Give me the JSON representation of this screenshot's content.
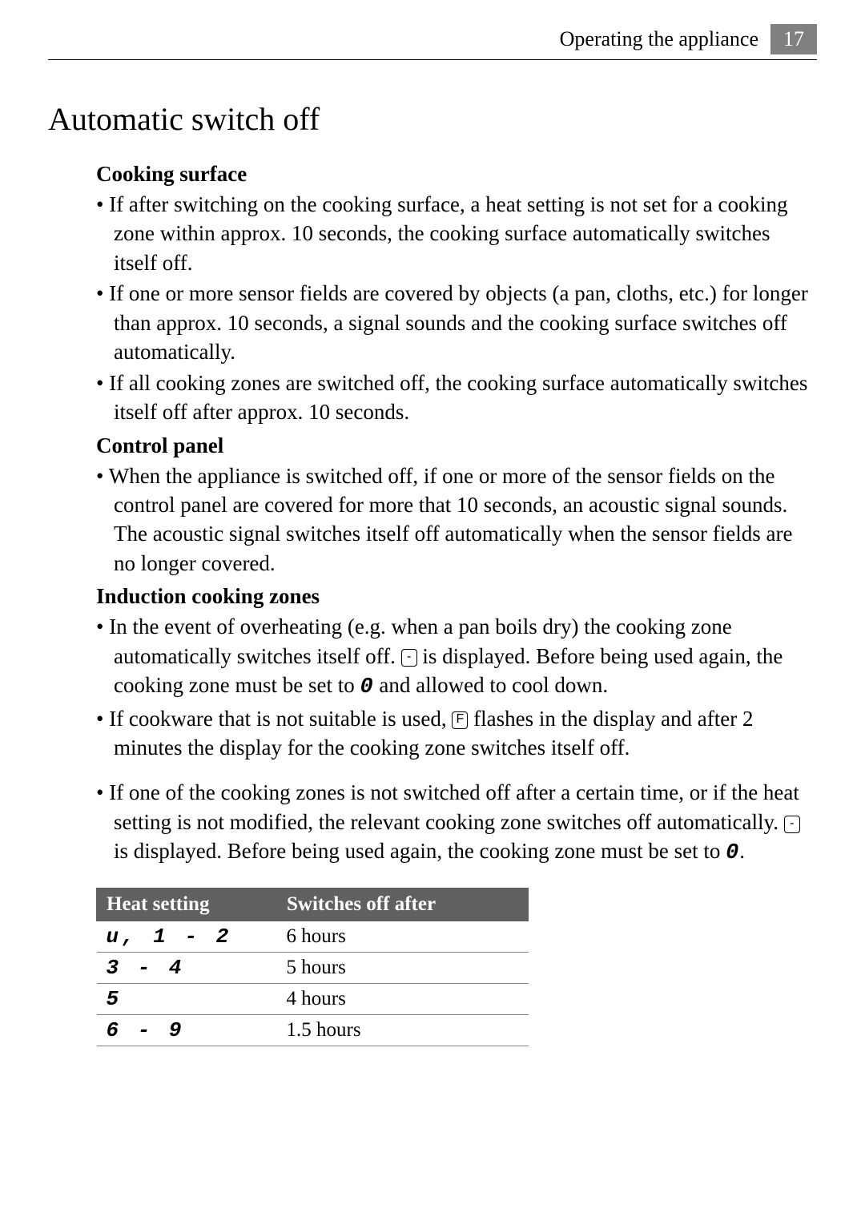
{
  "header": {
    "section": "Operating the appliance",
    "page": "17"
  },
  "title": "Automatic switch off",
  "sections": [
    {
      "heading": "Cooking surface",
      "bullets": [
        {
          "text": "If after switching on the cooking surface, a heat setting is not set for a cooking zone within approx. 10 seconds, the cooking surface automatically switches itself off."
        },
        {
          "text": "If one or more sensor fields are covered by objects (a pan, cloths, etc.)  for longer than approx. 10 seconds, a signal sounds and the cooking surface switches off automatically."
        },
        {
          "text": "If all cooking zones are switched off, the cooking surface automatically switches itself off after approx. 10 seconds."
        }
      ]
    },
    {
      "heading": "Control panel",
      "bullets": [
        {
          "text": "When the appliance is switched off, if one or more of the sensor fields on the control panel are covered for more that 10 seconds, an acoustic signal sounds. The acoustic signal switches itself off automatically when the sensor fields are no longer covered."
        }
      ]
    },
    {
      "heading": "Induction cooking zones",
      "bullets": [
        {
          "pre": "In the event of overheating (e.g. when a pan boils dry) the cooking zone automatically switches itself off. ",
          "sym1": "-",
          "mid1": " is displayed. Before being used again, the cooking zone must be set to ",
          "seg1": "0",
          "post1": " and allowed to cool down."
        },
        {
          "pre": "If cookware that is not suitable is used, ",
          "sym1": "F",
          "mid1": " flashes in the display and after 2 minutes the display for the cooking zone switches itself off."
        }
      ]
    }
  ],
  "standalone_bullet": {
    "pre": "If one of the cooking zones is not switched off after a certain time, or if the heat setting is not modified, the relevant cooking zone switches off automatically. ",
    "sym1": "-",
    "mid1": " is displayed. Before being used again, the cooking zone must be set to ",
    "seg1": "0",
    "post1": "."
  },
  "table": {
    "headers": [
      "Heat setting",
      "Switches off after"
    ],
    "rows": [
      [
        "u, 1 - 2",
        "6 hours"
      ],
      [
        "3 - 4",
        "5 hours"
      ],
      [
        "5",
        "4 hours"
      ],
      [
        "6 - 9",
        "1.5 hours"
      ]
    ]
  }
}
